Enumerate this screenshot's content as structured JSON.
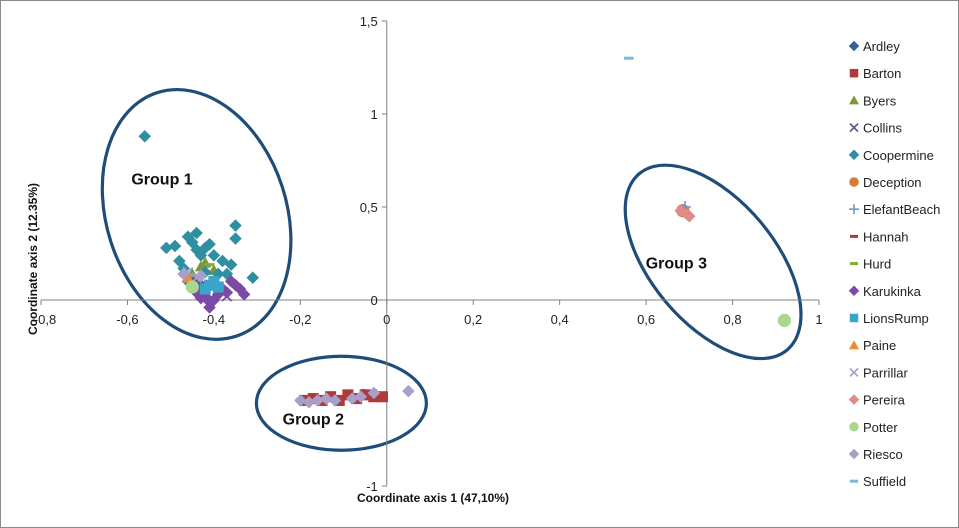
{
  "chart_data": {
    "type": "scatter",
    "title": "",
    "xlabel": "Coordinate axis 1 (47,10%)",
    "ylabel": "Coordinate axis 2 (12.35%)",
    "xlim": [
      -0.8,
      1.0
    ],
    "ylim": [
      -1.0,
      1.5
    ],
    "x_ticks": [
      {
        "value": -0.8,
        "label": "-0,8"
      },
      {
        "value": -0.6,
        "label": "-0,6"
      },
      {
        "value": -0.4,
        "label": "-0,4"
      },
      {
        "value": -0.2,
        "label": "-0,2"
      },
      {
        "value": 0,
        "label": "0"
      },
      {
        "value": 0.2,
        "label": "0,2"
      },
      {
        "value": 0.4,
        "label": "0,4"
      },
      {
        "value": 0.6,
        "label": "0,6"
      },
      {
        "value": 0.8,
        "label": "0,8"
      },
      {
        "value": 1.0,
        "label": "1"
      }
    ],
    "y_ticks": [
      {
        "value": 1.5,
        "label": "1,5"
      },
      {
        "value": 1.0,
        "label": "1"
      },
      {
        "value": 0.5,
        "label": "0,5"
      },
      {
        "value": 0,
        "label": "0"
      },
      {
        "value": -0.5,
        "label": "-0,5"
      },
      {
        "value": -1.0,
        "label": "-1"
      }
    ],
    "legend_position": "right",
    "series": [
      {
        "name": "Ardley",
        "marker": "diamond",
        "color": "#3a5f9a",
        "points": [
          [
            -0.45,
            0.12
          ],
          [
            -0.43,
            0.08
          ]
        ]
      },
      {
        "name": "Barton",
        "marker": "square",
        "color": "#b03a3a",
        "points": [
          [
            -0.19,
            -0.54
          ],
          [
            -0.17,
            -0.53
          ],
          [
            -0.15,
            -0.54
          ],
          [
            -0.13,
            -0.52
          ],
          [
            -0.11,
            -0.54
          ],
          [
            -0.09,
            -0.51
          ],
          [
            -0.07,
            -0.53
          ],
          [
            -0.05,
            -0.51
          ],
          [
            -0.03,
            -0.52
          ],
          [
            -0.01,
            -0.52
          ]
        ]
      },
      {
        "name": "Byers",
        "marker": "triangle",
        "color": "#7a9a3a",
        "points": [
          [
            -0.43,
            0.18
          ],
          [
            -0.42,
            0.2
          ],
          [
            -0.45,
            0.14
          ],
          [
            -0.4,
            0.16
          ]
        ]
      },
      {
        "name": "Collins",
        "marker": "x",
        "color": "#6a4a8a",
        "points": [
          [
            -0.37,
            0.02
          ],
          [
            -0.44,
            0.1
          ]
        ]
      },
      {
        "name": "Coopermine",
        "marker": "diamond",
        "color": "#2e8fa0",
        "points": [
          [
            -0.56,
            0.88
          ],
          [
            -0.51,
            0.28
          ],
          [
            -0.49,
            0.29
          ],
          [
            -0.48,
            0.21
          ],
          [
            -0.46,
            0.34
          ],
          [
            -0.45,
            0.31
          ],
          [
            -0.44,
            0.27
          ],
          [
            -0.43,
            0.24
          ],
          [
            -0.42,
            0.28
          ],
          [
            -0.41,
            0.3
          ],
          [
            -0.4,
            0.24
          ],
          [
            -0.38,
            0.21
          ],
          [
            -0.35,
            0.4
          ],
          [
            -0.35,
            0.33
          ],
          [
            -0.36,
            0.19
          ],
          [
            -0.37,
            0.14
          ],
          [
            -0.31,
            0.12
          ],
          [
            -0.47,
            0.17
          ],
          [
            -0.44,
            0.36
          ],
          [
            -0.39,
            0.14
          ],
          [
            -0.42,
            0.15
          ],
          [
            -0.46,
            0.1
          ]
        ]
      },
      {
        "name": "Deception",
        "marker": "circle",
        "color": "#d97a35",
        "points": [
          [
            0.685,
            0.48
          ]
        ]
      },
      {
        "name": "ElefantBeach",
        "marker": "plus",
        "color": "#6a9ad0",
        "points": [
          [
            0.69,
            0.5
          ]
        ]
      },
      {
        "name": "Hannah",
        "marker": "dash",
        "color": "#b03a3a",
        "points": [
          [
            -0.39,
            0.06
          ]
        ]
      },
      {
        "name": "Hurd",
        "marker": "dash",
        "color": "#7ab030",
        "points": [
          [
            -0.41,
            0.19
          ]
        ]
      },
      {
        "name": "Karukinka",
        "marker": "diamond",
        "color": "#7a4aa5",
        "points": [
          [
            -0.44,
            0.04
          ],
          [
            -0.43,
            0.01
          ],
          [
            -0.42,
            0.02
          ],
          [
            -0.41,
            -0.01
          ],
          [
            -0.4,
            0.0
          ],
          [
            -0.39,
            0.03
          ],
          [
            -0.38,
            0.06
          ],
          [
            -0.36,
            0.1
          ],
          [
            -0.35,
            0.08
          ],
          [
            -0.34,
            0.06
          ],
          [
            -0.33,
            0.03
          ],
          [
            -0.45,
            0.08
          ],
          [
            -0.41,
            -0.04
          ],
          [
            -0.37,
            0.04
          ]
        ]
      },
      {
        "name": "LionsRump",
        "marker": "square",
        "color": "#3aa5c8",
        "points": [
          [
            -0.41,
            0.08
          ],
          [
            -0.4,
            0.1
          ],
          [
            -0.39,
            0.07
          ],
          [
            -0.42,
            0.06
          ]
        ]
      },
      {
        "name": "Paine",
        "marker": "triangle",
        "color": "#f08a30",
        "points": [
          [
            -0.46,
            0.12
          ]
        ]
      },
      {
        "name": "Parrillar",
        "marker": "x",
        "color": "#a0a0c8",
        "points": [
          [
            -0.46,
            0.15
          ],
          [
            -0.44,
            0.12
          ]
        ]
      },
      {
        "name": "Pereira",
        "marker": "diamond",
        "color": "#e08a8a",
        "points": [
          [
            0.68,
            0.48
          ],
          [
            0.695,
            0.46
          ],
          [
            0.7,
            0.45
          ]
        ]
      },
      {
        "name": "Potter",
        "marker": "circle",
        "color": "#a8d890",
        "points": [
          [
            0.92,
            -0.11
          ],
          [
            -0.45,
            0.07
          ]
        ]
      },
      {
        "name": "Riesco",
        "marker": "diamond",
        "color": "#a8a0c8",
        "points": [
          [
            -0.2,
            -0.54
          ],
          [
            -0.18,
            -0.55
          ],
          [
            -0.16,
            -0.54
          ],
          [
            -0.14,
            -0.53
          ],
          [
            -0.12,
            -0.54
          ],
          [
            -0.08,
            -0.53
          ],
          [
            -0.06,
            -0.52
          ],
          [
            -0.03,
            -0.5
          ],
          [
            0.05,
            -0.49
          ],
          [
            -0.47,
            0.14
          ],
          [
            -0.43,
            0.13
          ]
        ]
      },
      {
        "name": "Suffield",
        "marker": "dash",
        "color": "#7ab8d8",
        "points": [
          [
            0.56,
            1.3
          ]
        ]
      }
    ],
    "annotations": [
      {
        "text": "Group 1",
        "x": -0.52,
        "y": 0.62
      },
      {
        "text": "Group 2",
        "x": -0.17,
        "y": -0.67
      },
      {
        "text": "Group 3",
        "x": 0.67,
        "y": 0.17
      }
    ],
    "ellipses": [
      {
        "name": "Group 1",
        "cx": -0.44,
        "cy": 0.46,
        "rx": 0.2,
        "ry": 0.53,
        "rotation_deg": -18
      },
      {
        "name": "Group 2",
        "cx": -0.105,
        "cy": -0.555,
        "rx": 0.195,
        "ry": 0.25,
        "rotation_deg": 0
      },
      {
        "name": "Group 3",
        "cx": 0.755,
        "cy": 0.205,
        "rx": 0.12,
        "ry": 0.51,
        "rotation_deg": -40
      }
    ]
  }
}
